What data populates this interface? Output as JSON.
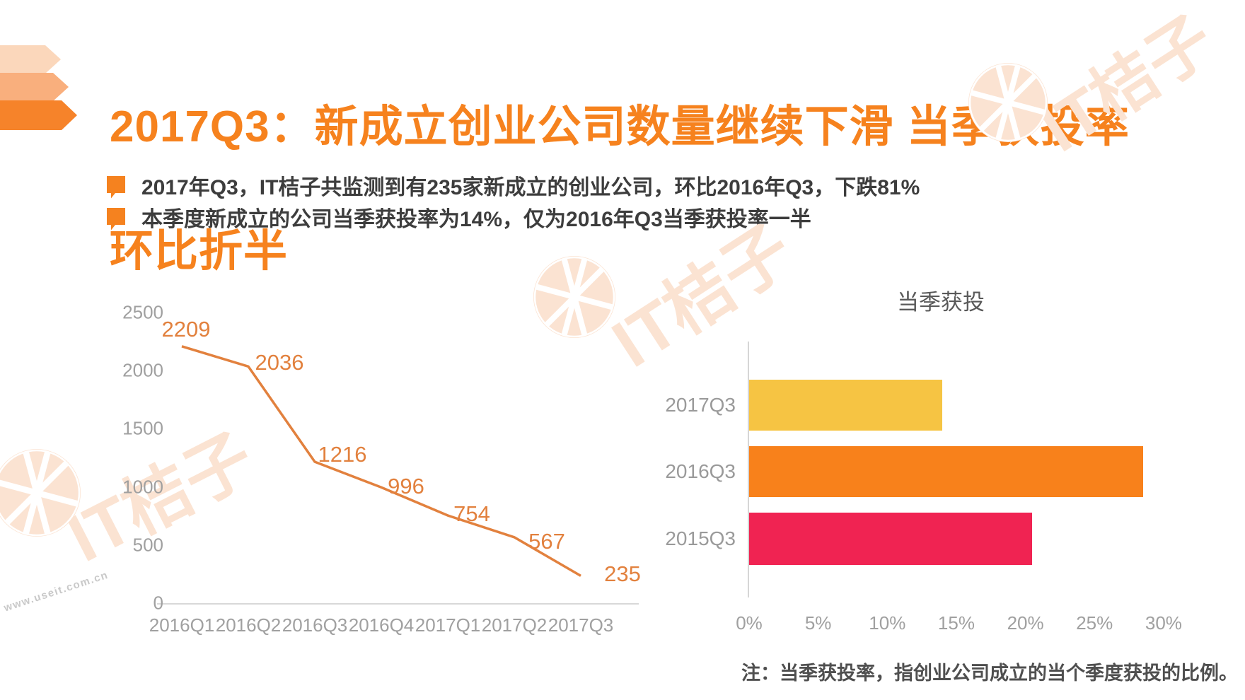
{
  "title": {
    "line1": "2017Q3：新成立创业公司数量继续下滑 当季获投率",
    "line2": "环比折半"
  },
  "bullets": [
    {
      "text": "2017年Q3，IT桔子共监测到有235家新成立的创业公司，环比2016年Q3，下跌81%"
    },
    {
      "text": "本季度新成立的公司当季获投率为14%，仅为2016年Q3当季获投率一半"
    }
  ],
  "note": {
    "text": "注：当季获投率，指创业公司成立的当个季度获投的比例。"
  },
  "watermarks": {
    "brand": "IT桔子",
    "site": "www.useit.com.cn"
  },
  "colors": {
    "accent_orange": "#f5821f",
    "title_orange": "#f6821e",
    "chevron_light": "#fbd7bb",
    "chevron_mid": "#f9af7d",
    "chevron_dark": "#f6832a",
    "line_orange": "#e2813e",
    "axis_gray": "#d8d8d8",
    "tick_gray": "#a0a0a0",
    "watermark_pale": "#fbe3d2"
  },
  "chart_data": [
    {
      "type": "line",
      "title": "",
      "categories": [
        "2016Q1",
        "2016Q2",
        "2016Q3",
        "2016Q4",
        "2017Q1",
        "2017Q2",
        "2017Q3"
      ],
      "values": [
        2209,
        2036,
        1216,
        996,
        754,
        567,
        235
      ],
      "yticks": [
        0,
        500,
        1000,
        1500,
        2000,
        2500
      ],
      "ylim": [
        0,
        2500
      ],
      "xlabel": "",
      "ylabel": "",
      "grid": false,
      "legend": "none",
      "line_color": "#e2813e"
    },
    {
      "type": "bar",
      "orientation": "horizontal",
      "title": "当季获投",
      "categories": [
        "2017Q3",
        "2016Q3",
        "2015Q3"
      ],
      "values": [
        14,
        28.5,
        20.5
      ],
      "unit": "%",
      "xticks": [
        "0%",
        "5%",
        "10%",
        "15%",
        "20%",
        "25%",
        "30%"
      ],
      "xlim": [
        0,
        30
      ],
      "bar_colors": [
        "#f6c443",
        "#f8811b",
        "#f02352"
      ],
      "grid": false,
      "legend": "none"
    }
  ]
}
